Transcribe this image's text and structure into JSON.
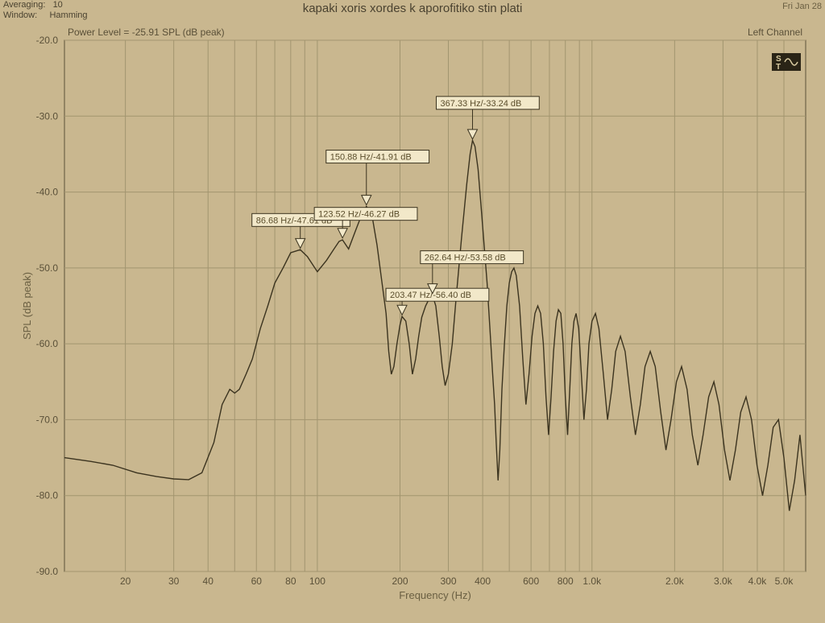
{
  "header": {
    "averaging_label": "Averaging:",
    "averaging_value": "10",
    "window_label": "Window:",
    "window_value": "Hamming",
    "title": "kapaki xoris xordes k aporofitiko stin plati",
    "date": "Fri Jan 28"
  },
  "chart": {
    "type": "line",
    "power_level_text": "Power Level = -25.91 SPL (dB peak)",
    "channel_text": "Left Channel",
    "xlabel": "Frequency (Hz)",
    "ylabel": "SPL (dB peak)",
    "x_scale": "log",
    "y_scale": "linear",
    "ylim_min": -90,
    "ylim_max": -20,
    "y_ticks": [
      -20,
      -30,
      -40,
      -50,
      -60,
      -70,
      -80,
      -90
    ],
    "y_tick_labels": [
      "-20.0",
      "-30.0",
      "-40.0",
      "-50.0",
      "-60.0",
      "-70.0",
      "-80.0",
      "-90.0"
    ],
    "x_min_hz": 12,
    "x_max_hz": 6000,
    "x_ticks_hz": [
      20,
      30,
      40,
      50,
      60,
      70,
      80,
      90,
      100,
      200,
      300,
      400,
      500,
      600,
      700,
      800,
      900,
      1000,
      2000,
      3000,
      4000,
      5000
    ],
    "x_tick_labels": {
      "20": "20",
      "30": "30",
      "40": "40",
      "60": "60",
      "80": "80",
      "100": "100",
      "200": "200",
      "300": "300",
      "400": "400",
      "600": "600",
      "800": "800",
      "1000": "1.0k",
      "2000": "2.0k",
      "3000": "3.0k",
      "4000": "4.0k",
      "5000": "5.0k"
    },
    "background_color": "#c9b78f",
    "grid_color": "#a2956f",
    "line_color": "#3b331f",
    "markers": [
      {
        "hz": 86.68,
        "db": -47.61,
        "label": "86.68 Hz/-47.61 dB"
      },
      {
        "hz": 123.52,
        "db": -46.27,
        "label": "123.52 Hz/-46.27 dB"
      },
      {
        "hz": 150.88,
        "db": -41.91,
        "label": "150.88 Hz/-41.91 dB"
      },
      {
        "hz": 203.47,
        "db": -56.4,
        "label": "203.47 Hz/-56.40 dB"
      },
      {
        "hz": 262.64,
        "db": -53.58,
        "label": "262.64 Hz/-53.58 dB"
      },
      {
        "hz": 367.33,
        "db": -33.24,
        "label": "367.33 Hz/-33.24 dB"
      }
    ],
    "data": [
      [
        12,
        -75
      ],
      [
        15,
        -75.5
      ],
      [
        18,
        -76
      ],
      [
        22,
        -77
      ],
      [
        26,
        -77.5
      ],
      [
        30,
        -77.8
      ],
      [
        34,
        -77.9
      ],
      [
        38,
        -77
      ],
      [
        42,
        -73
      ],
      [
        45,
        -68
      ],
      [
        48,
        -66
      ],
      [
        50,
        -66.5
      ],
      [
        52,
        -66
      ],
      [
        55,
        -64
      ],
      [
        58,
        -62
      ],
      [
        62,
        -58
      ],
      [
        66,
        -55
      ],
      [
        70,
        -52
      ],
      [
        75,
        -50
      ],
      [
        80,
        -48
      ],
      [
        86.68,
        -47.6
      ],
      [
        92,
        -48.5
      ],
      [
        100,
        -50.5
      ],
      [
        108,
        -49
      ],
      [
        115,
        -47.5
      ],
      [
        120,
        -46.5
      ],
      [
        123.5,
        -46.3
      ],
      [
        130,
        -47.5
      ],
      [
        138,
        -45
      ],
      [
        145,
        -43
      ],
      [
        150.88,
        -41.9
      ],
      [
        158,
        -43
      ],
      [
        165,
        -47
      ],
      [
        172,
        -52
      ],
      [
        178,
        -56
      ],
      [
        182,
        -61
      ],
      [
        186,
        -64
      ],
      [
        190,
        -63
      ],
      [
        195,
        -60
      ],
      [
        200,
        -57.5
      ],
      [
        203.47,
        -56.4
      ],
      [
        210,
        -57
      ],
      [
        216,
        -60
      ],
      [
        222,
        -64
      ],
      [
        228,
        -62
      ],
      [
        234,
        -59
      ],
      [
        240,
        -56.5
      ],
      [
        248,
        -55
      ],
      [
        256,
        -54
      ],
      [
        262.64,
        -53.6
      ],
      [
        270,
        -55
      ],
      [
        278,
        -59
      ],
      [
        285,
        -63
      ],
      [
        292,
        -65.5
      ],
      [
        300,
        -64
      ],
      [
        310,
        -60
      ],
      [
        320,
        -54
      ],
      [
        335,
        -46
      ],
      [
        350,
        -39
      ],
      [
        360,
        -35
      ],
      [
        367.33,
        -33.2
      ],
      [
        375,
        -34
      ],
      [
        385,
        -37
      ],
      [
        395,
        -42
      ],
      [
        405,
        -47
      ],
      [
        415,
        -52
      ],
      [
        425,
        -58
      ],
      [
        435,
        -64
      ],
      [
        442,
        -68
      ],
      [
        448,
        -73
      ],
      [
        455,
        -78
      ],
      [
        462,
        -74
      ],
      [
        470,
        -66
      ],
      [
        480,
        -60
      ],
      [
        490,
        -55
      ],
      [
        500,
        -52
      ],
      [
        510,
        -50.5
      ],
      [
        520,
        -50
      ],
      [
        530,
        -51
      ],
      [
        545,
        -55
      ],
      [
        560,
        -62
      ],
      [
        575,
        -68
      ],
      [
        590,
        -64
      ],
      [
        605,
        -59
      ],
      [
        620,
        -56
      ],
      [
        635,
        -55
      ],
      [
        650,
        -56
      ],
      [
        665,
        -60
      ],
      [
        680,
        -67
      ],
      [
        695,
        -72
      ],
      [
        710,
        -67
      ],
      [
        725,
        -61
      ],
      [
        740,
        -57
      ],
      [
        755,
        -55.5
      ],
      [
        770,
        -56
      ],
      [
        785,
        -60
      ],
      [
        800,
        -67
      ],
      [
        815,
        -72
      ],
      [
        830,
        -66
      ],
      [
        845,
        -60
      ],
      [
        860,
        -57
      ],
      [
        875,
        -56
      ],
      [
        895,
        -58
      ],
      [
        915,
        -64
      ],
      [
        935,
        -70
      ],
      [
        955,
        -66
      ],
      [
        975,
        -60
      ],
      [
        1000,
        -57
      ],
      [
        1030,
        -56
      ],
      [
        1060,
        -58
      ],
      [
        1100,
        -64
      ],
      [
        1140,
        -70
      ],
      [
        1180,
        -66
      ],
      [
        1220,
        -61
      ],
      [
        1270,
        -59
      ],
      [
        1320,
        -61
      ],
      [
        1380,
        -67
      ],
      [
        1440,
        -72
      ],
      [
        1500,
        -68
      ],
      [
        1560,
        -63
      ],
      [
        1630,
        -61
      ],
      [
        1700,
        -63
      ],
      [
        1780,
        -69
      ],
      [
        1860,
        -74
      ],
      [
        1940,
        -70
      ],
      [
        2030,
        -65
      ],
      [
        2120,
        -63
      ],
      [
        2220,
        -66
      ],
      [
        2320,
        -72
      ],
      [
        2430,
        -76
      ],
      [
        2540,
        -72
      ],
      [
        2660,
        -67
      ],
      [
        2780,
        -65
      ],
      [
        2900,
        -68
      ],
      [
        3040,
        -74
      ],
      [
        3180,
        -78
      ],
      [
        3330,
        -74
      ],
      [
        3480,
        -69
      ],
      [
        3640,
        -67
      ],
      [
        3810,
        -70
      ],
      [
        3990,
        -76
      ],
      [
        4180,
        -80
      ],
      [
        4370,
        -76
      ],
      [
        4570,
        -71
      ],
      [
        4780,
        -70
      ],
      [
        5000,
        -75
      ],
      [
        5230,
        -82
      ],
      [
        5470,
        -78
      ],
      [
        5720,
        -72
      ],
      [
        6000,
        -80
      ]
    ]
  }
}
